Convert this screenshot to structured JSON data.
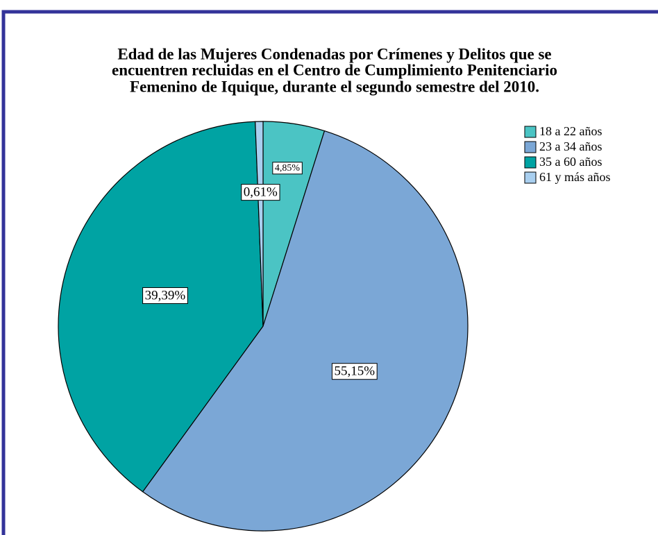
{
  "chart_data": {
    "type": "pie",
    "title": [
      "Edad de las Mujeres Condenadas por Crímenes y Delitos que se",
      "encuentren recluidas en el Centro de Cumplimiento Penitenciario",
      "Femenino de Iquique, durante el segundo semestre del 2010."
    ],
    "categories": [
      "18 a 22 años",
      "23 a 34 años",
      "35 a 60 años",
      "61 y más años"
    ],
    "values": [
      4.85,
      55.15,
      39.39,
      0.61
    ],
    "value_labels": [
      "4,85%",
      "55,15%",
      "39,39%",
      "0,61%"
    ],
    "colors": [
      "#4bc4c4",
      "#7ba7d6",
      "#00a3a3",
      "#a9cfef"
    ],
    "legend": "upper right"
  }
}
